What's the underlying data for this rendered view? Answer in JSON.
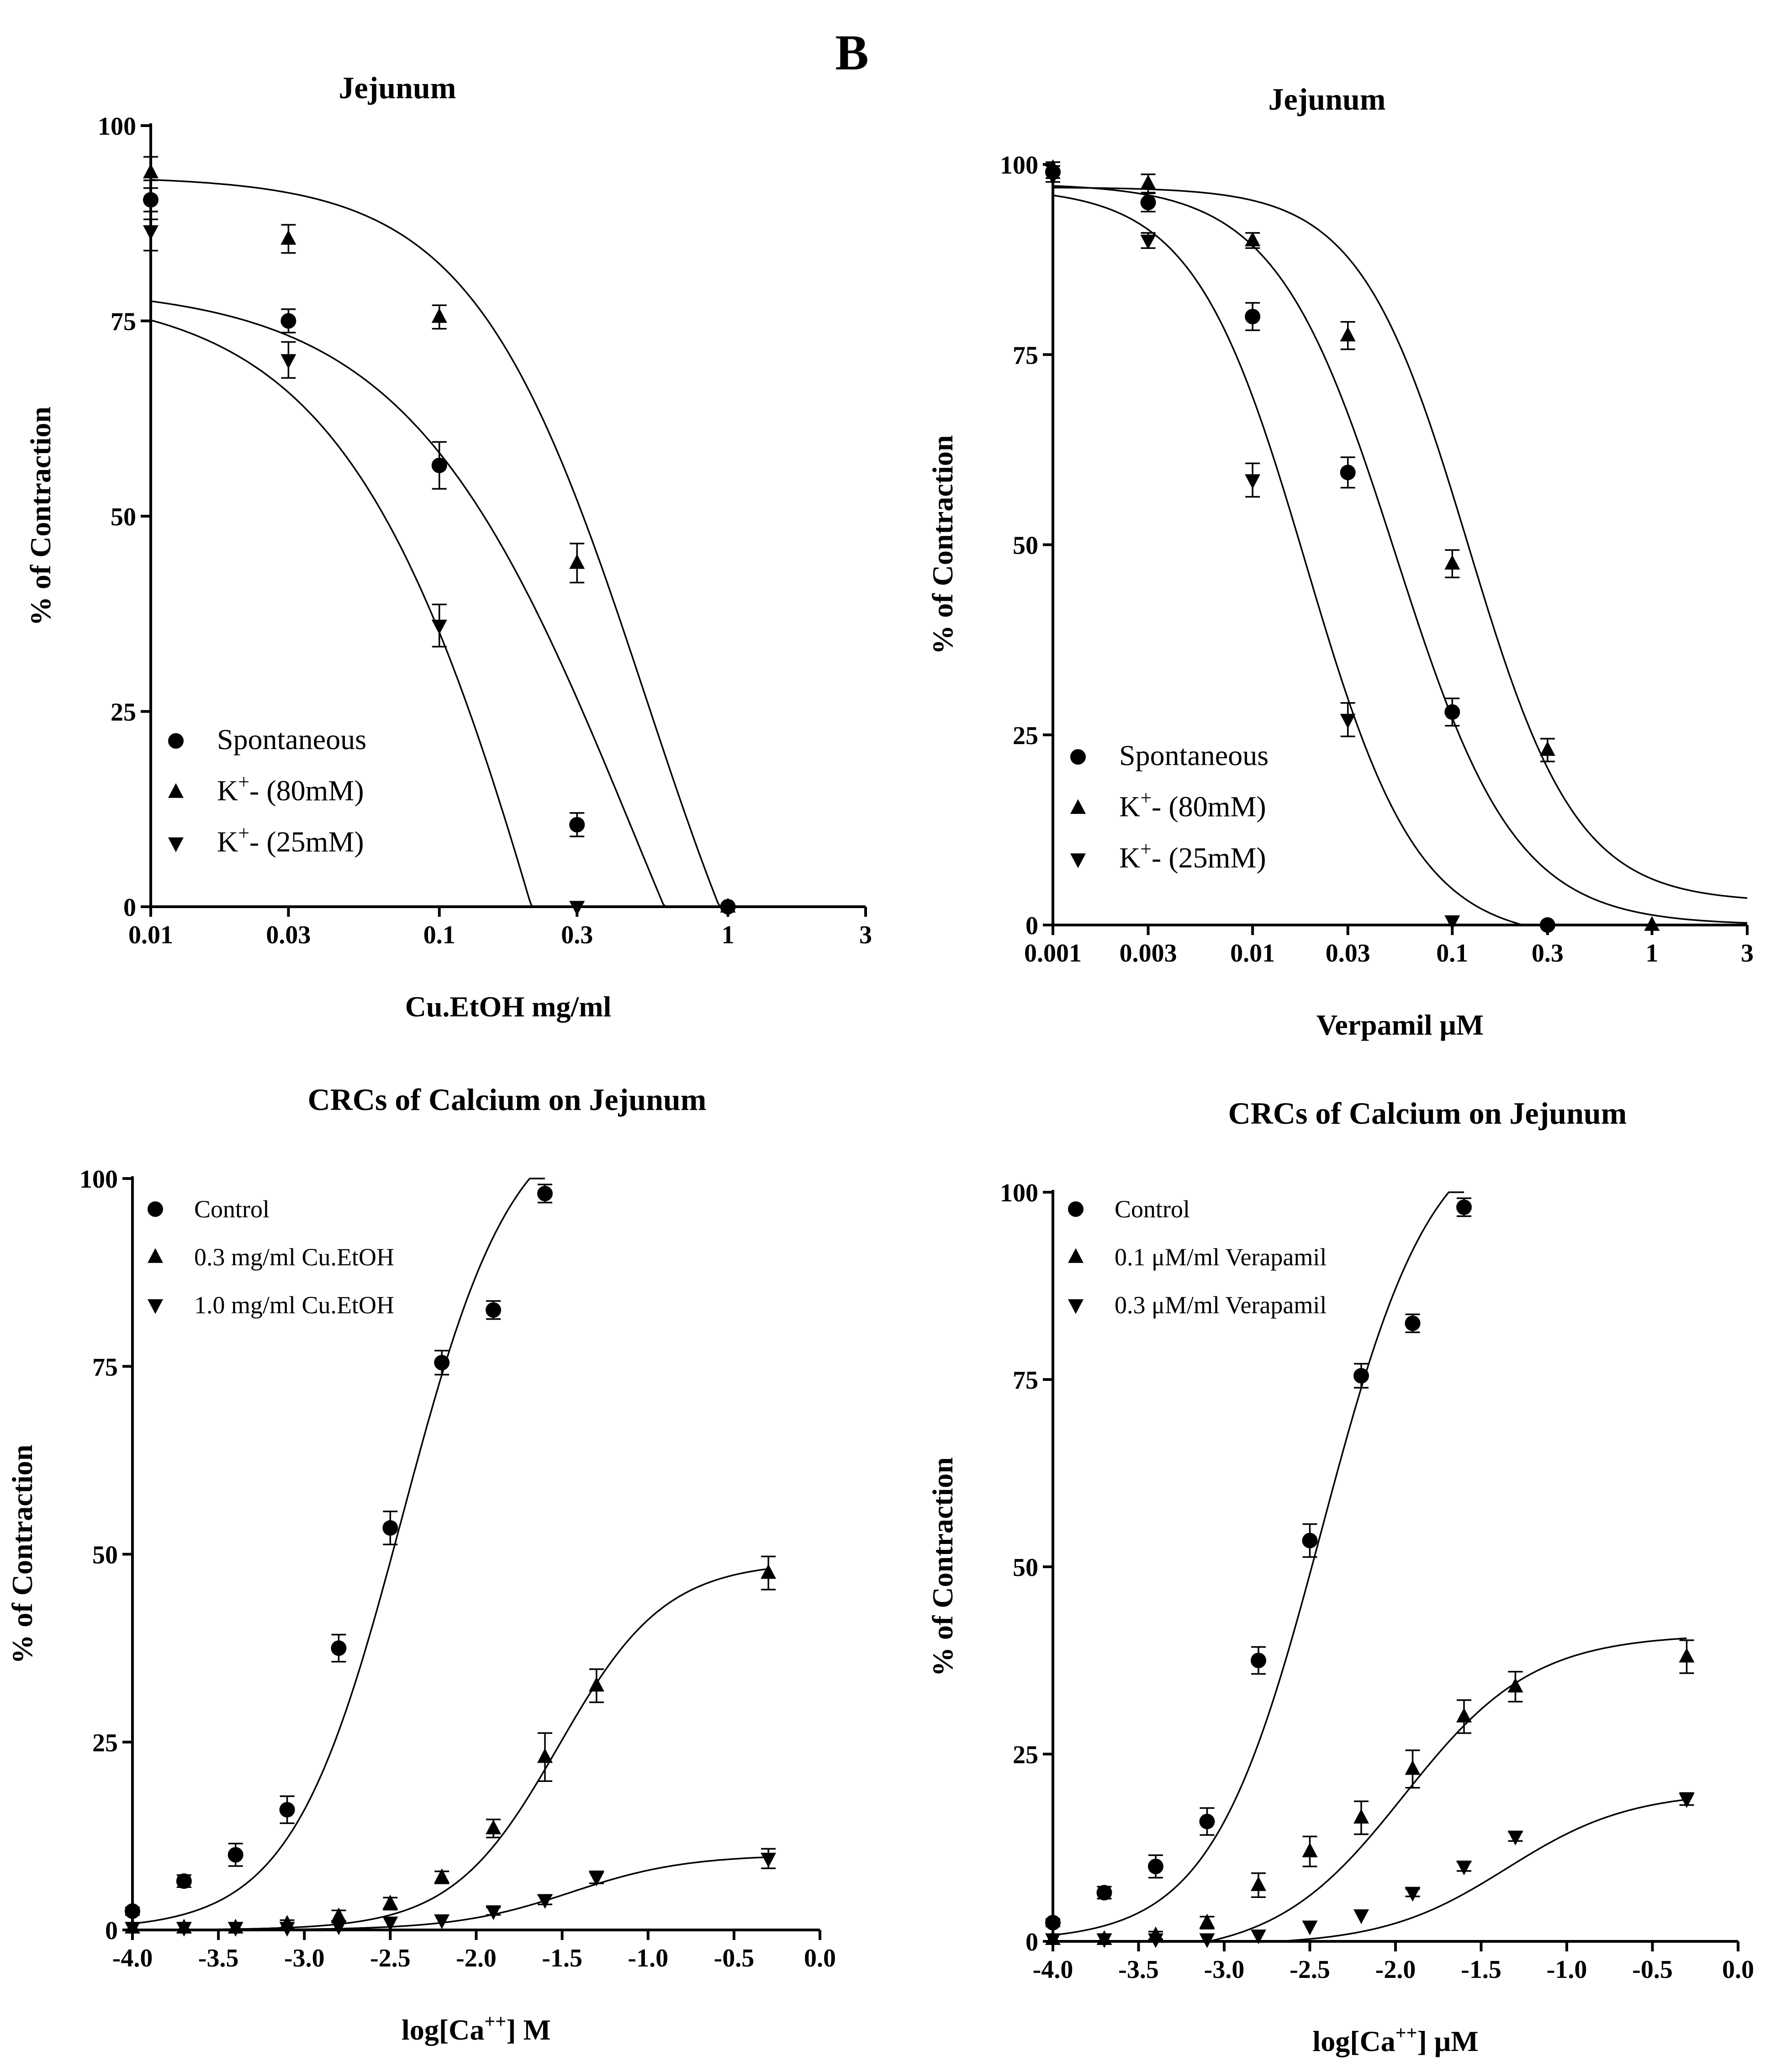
{
  "figure_label": "B",
  "chart_data": [
    {
      "id": "A",
      "type": "scatter",
      "title": "Jejunum",
      "xlabel": "Cu.EtOH mg/ml",
      "ylabel": "% of Contraction",
      "xscale": "log",
      "xlim": [
        0.01,
        3
      ],
      "ylim": [
        0,
        100
      ],
      "xticks": [
        0.01,
        0.03,
        0.1,
        0.3,
        1,
        3
      ],
      "xtick_labels": [
        "0.01",
        "0.03",
        "0.1",
        "0.3",
        "1",
        "3"
      ],
      "yticks": [
        0,
        25,
        50,
        75,
        100
      ],
      "legend_position": "bottom-left",
      "series": [
        {
          "name": "Spontaneous",
          "marker": "circle",
          "x": [
            0.01,
            0.03,
            0.1,
            0.3,
            1
          ],
          "y": [
            90.5,
            75,
            56.5,
            10.5,
            0
          ],
          "err": [
            2.5,
            1.5,
            3,
            1.5,
            0
          ],
          "fit": {
            "top": 79.5,
            "bottom": -62,
            "ic50": 0.48,
            "hill": 1.1
          }
        },
        {
          "name": "K",
          "marker": "triangle-up",
          "x": [
            0.01,
            0.03,
            0.1,
            0.3,
            1
          ],
          "y": [
            94,
            85.5,
            75.5,
            44,
            0
          ],
          "err": [
            2,
            1.8,
            1.5,
            2.5,
            0
          ],
          "fit": {
            "top": 93.5,
            "bottom": -40,
            "ic50": 0.52,
            "hill": 1.45
          }
        },
        {
          "name": "K",
          "marker": "triangle-down",
          "x": [
            0.01,
            0.03,
            0.1,
            0.3
          ],
          "y": [
            86.5,
            70,
            36,
            0
          ],
          "err": [
            2.5,
            2.3,
            2.7,
            0
          ],
          "fit": {
            "top": 79,
            "bottom": -120,
            "ic50": 0.3,
            "hill": 1.15
          }
        }
      ]
    },
    {
      "id": "B",
      "type": "scatter",
      "title": "Jejunum",
      "xlabel": "Verpamil μM",
      "ylabel": "% of Contraction",
      "xscale": "log",
      "xlim": [
        0.001,
        3
      ],
      "ylim": [
        0,
        100
      ],
      "xticks": [
        0.001,
        0.003,
        0.01,
        0.03,
        0.1,
        0.3,
        1,
        3
      ],
      "xtick_labels": [
        "0.001",
        "0.003",
        "0.01",
        "0.03",
        "0.1",
        "0.3",
        "1",
        "3"
      ],
      "yticks": [
        0,
        25,
        50,
        75,
        100
      ],
      "legend_position": "bottom-left",
      "series": [
        {
          "name": "Spontaneous",
          "marker": "circle",
          "x": [
            0.001,
            0.003,
            0.01,
            0.03,
            0.1,
            0.3
          ],
          "y": [
            99,
            95,
            80,
            59.5,
            28,
            0
          ],
          "err": [
            0.8,
            1.2,
            1.8,
            2,
            1.8,
            0
          ],
          "fit": {
            "top": 97.5,
            "bottom": 0,
            "ic50": 0.052,
            "hill": 1.45
          }
        },
        {
          "name": "K",
          "marker": "triangle-up",
          "x": [
            0.001,
            0.003,
            0.01,
            0.03,
            0.1,
            0.3,
            1
          ],
          "y": [
            99.5,
            97.5,
            90,
            77.5,
            47.5,
            23,
            0
          ],
          "err": [
            0.8,
            1.2,
            1,
            1.8,
            1.8,
            1.5,
            0
          ],
          "fit": {
            "top": 97,
            "bottom": 3,
            "ic50": 0.12,
            "hill": 1.6
          }
        },
        {
          "name": "K",
          "marker": "triangle-down",
          "x": [
            0.001,
            0.003,
            0.01,
            0.03,
            0.1
          ],
          "y": [
            98.5,
            90,
            58.5,
            27,
            0.5
          ],
          "err": [
            0.8,
            1,
            2.2,
            2.2,
            0
          ],
          "fit": {
            "top": 97,
            "bottom": -2,
            "ic50": 0.0185,
            "hill": 1.55
          }
        }
      ]
    },
    {
      "id": "C",
      "type": "scatter",
      "title": "CRCs of Calcium on Jejunum",
      "xlabel_pre": "log[Ca",
      "xlabel_sup": "++",
      "xlabel_post": "] M",
      "ylabel": "% of Contraction",
      "xscale": "linear",
      "xlim": [
        -4.0,
        0.0
      ],
      "ylim": [
        0,
        100
      ],
      "xticks": [
        -4.0,
        -3.5,
        -3.0,
        -2.5,
        -2.0,
        -1.5,
        -1.0,
        -0.5,
        0.0
      ],
      "xtick_labels": [
        "-4.0",
        "-3.5",
        "-3.0",
        "-2.5",
        "-2.0",
        "-1.5",
        "-1.0",
        "-0.5",
        "0.0"
      ],
      "yticks": [
        0,
        25,
        50,
        75,
        100
      ],
      "legend_position": "top-left",
      "series": [
        {
          "name": "Control",
          "marker": "circle",
          "x": [
            -4.0,
            -3.7,
            -3.4,
            -3.1,
            -2.8,
            -2.5,
            -2.2,
            -1.9,
            -1.6
          ],
          "y": [
            2.5,
            6.5,
            10,
            16,
            37.5,
            53.5,
            75.5,
            82.5,
            98
          ],
          "err": [
            0.5,
            0.8,
            1.5,
            1.8,
            1.8,
            2.2,
            1.6,
            1.2,
            1.2
          ],
          "fit": {
            "bottom": 0,
            "top": 110,
            "ec50": -2.43,
            "hill": 1.35,
            "xmax": -1.6
          }
        },
        {
          "name": "0.3 mg/ml Cu.EtOH",
          "marker": "triangle-up",
          "x": [
            -4.0,
            -3.7,
            -3.4,
            -3.1,
            -2.8,
            -2.5,
            -2.2,
            -1.9,
            -1.6,
            -1.3,
            -0.3
          ],
          "y": [
            0.3,
            0.3,
            0.3,
            0.8,
            1.8,
            3.5,
            7,
            13.5,
            23,
            32.5,
            47.5
          ],
          "err": [
            0,
            0,
            0,
            0.5,
            0.8,
            0.8,
            0.8,
            1.2,
            3.2,
            2.2,
            2.2
          ],
          "fit": {
            "bottom": 0,
            "top": 49,
            "ec50": -1.52,
            "hill": 1.4,
            "xmax": -0.3
          }
        },
        {
          "name": "1.0 mg/ml Cu.EtOH",
          "marker": "triangle-down",
          "x": [
            -4.0,
            -3.7,
            -3.4,
            -3.1,
            -2.8,
            -2.5,
            -2.2,
            -1.9,
            -1.6,
            -1.3,
            -0.3
          ],
          "y": [
            0.3,
            0.3,
            0.3,
            0.3,
            0.5,
            1,
            1.3,
            2.5,
            4,
            7,
            9.5
          ],
          "err": [
            0,
            0,
            0,
            0,
            0,
            0,
            0,
            0.5,
            0.6,
            0.8,
            1.3
          ],
          "fit": {
            "bottom": 0,
            "top": 10,
            "ec50": -1.45,
            "hill": 1.3,
            "xmax": -0.3
          }
        }
      ]
    },
    {
      "id": "D",
      "type": "scatter",
      "title": "CRCs of Calcium on Jejunum",
      "xlabel_pre": "log[Ca",
      "xlabel_sup": "++",
      "xlabel_post": "] μM",
      "ylabel": "% of Contraction",
      "xscale": "linear",
      "xlim": [
        -4.0,
        0.0
      ],
      "ylim": [
        0,
        100
      ],
      "xticks": [
        -4.0,
        -3.5,
        -3.0,
        -2.5,
        -2.0,
        -1.5,
        -1.0,
        -0.5,
        0.0
      ],
      "xtick_labels": [
        "-4.0",
        "-3.5",
        "-3.0",
        "-2.5",
        "-2.0",
        "-1.5",
        "-1.0",
        "-0.5",
        "0.0"
      ],
      "yticks": [
        0,
        25,
        50,
        75,
        100
      ],
      "legend_position": "top-left",
      "series": [
        {
          "name": "Control",
          "marker": "circle",
          "x": [
            -4.0,
            -3.7,
            -3.4,
            -3.1,
            -2.8,
            -2.5,
            -2.2,
            -1.9,
            -1.6
          ],
          "y": [
            2.5,
            6.5,
            10,
            16,
            37.5,
            53.5,
            75.5,
            82.5,
            98
          ],
          "err": [
            0.5,
            0.8,
            1.5,
            1.8,
            1.8,
            2.2,
            1.6,
            1.2,
            1.2
          ],
          "fit": {
            "bottom": 0,
            "top": 110,
            "ec50": -2.43,
            "hill": 1.35,
            "xmax": -1.6
          }
        },
        {
          "name": "0.1 μM/ml Verapamil",
          "marker": "triangle-up",
          "x": [
            -4.0,
            -3.7,
            -3.4,
            -3.1,
            -2.8,
            -2.5,
            -2.2,
            -1.9,
            -1.6,
            -1.3,
            -0.3
          ],
          "y": [
            0.3,
            0.3,
            0.8,
            2.5,
            7.5,
            12,
            16.5,
            23,
            30,
            34,
            38
          ],
          "err": [
            0,
            0,
            0.5,
            0.8,
            1.6,
            2,
            2.2,
            2.5,
            2.2,
            2,
            2.2
          ],
          "fit": {
            "bottom": -2,
            "top": 41,
            "ec50": -1.95,
            "hill": 1.15,
            "xmax": -0.3
          }
        },
        {
          "name": "0.3 μM/ml Verapamil",
          "marker": "triangle-down",
          "x": [
            -4.0,
            -3.7,
            -3.4,
            -3.1,
            -2.8,
            -2.5,
            -2.2,
            -1.9,
            -1.6,
            -1.3,
            -0.3
          ],
          "y": [
            0.3,
            0.3,
            0.3,
            0.3,
            0.8,
            2,
            3.5,
            6.5,
            10,
            14,
            19
          ],
          "err": [
            0,
            0,
            0,
            0,
            0,
            0,
            0,
            0.5,
            0.6,
            0.6,
            0.8
          ],
          "fit": {
            "bottom": -0.5,
            "top": 20,
            "ec50": -1.35,
            "hill": 1.2,
            "xmax": -0.3
          }
        }
      ]
    }
  ],
  "legends": {
    "A": [
      {
        "pre": "Spontaneous",
        "sup": "",
        "post": ""
      },
      {
        "pre": "K",
        "sup": "+",
        "post": "- (80mM)"
      },
      {
        "pre": "K",
        "sup": "+",
        "post": "- (25mM)"
      }
    ],
    "B": [
      {
        "pre": "Spontaneous",
        "sup": "",
        "post": ""
      },
      {
        "pre": "K",
        "sup": "+",
        "post": "- (80mM)"
      },
      {
        "pre": "K",
        "sup": "+",
        "post": "- (25mM)"
      }
    ]
  }
}
